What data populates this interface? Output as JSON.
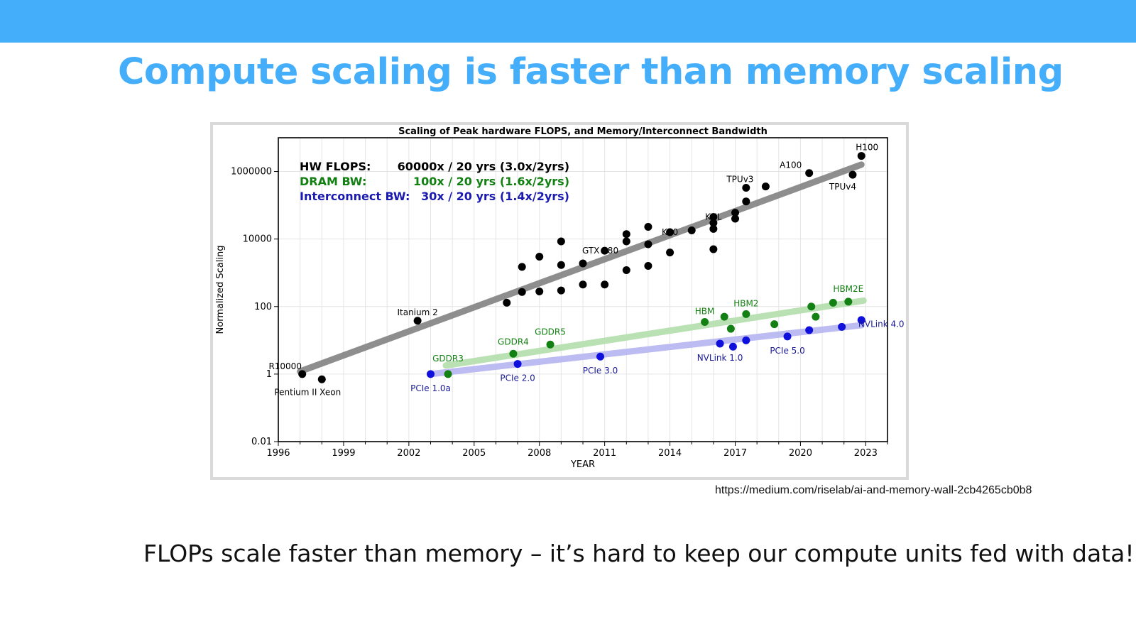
{
  "slide": {
    "title": "Compute scaling is faster than memory scaling",
    "source_url": "https://medium.com/riselab/ai-and-memory-wall-2cb4265cb0b8",
    "caption": "FLOPs scale faster than memory – it’s hard to keep our compute units fed with data!",
    "colors": {
      "banner": "#45aefb",
      "title": "#45aefb"
    }
  },
  "chart_data": {
    "type": "scatter",
    "title": "Scaling of Peak hardware FLOPS, and Memory/Interconnect Bandwidth",
    "xlabel": "YEAR",
    "ylabel": "Normalized Scaling",
    "y_scale": "log",
    "xlim": [
      1996,
      2024
    ],
    "ylim": [
      0.01,
      10000000
    ],
    "x_ticks": [
      1996,
      1999,
      2002,
      2005,
      2008,
      2011,
      2014,
      2017,
      2020,
      2023
    ],
    "y_ticks": [
      {
        "value": 0.01,
        "label": "0.01"
      },
      {
        "value": 1,
        "label": "1"
      },
      {
        "value": 100,
        "label": "100"
      },
      {
        "value": 10000,
        "label": "10000"
      },
      {
        "value": 1000000,
        "label": "1000000"
      }
    ],
    "grid": true,
    "annotations_box": [
      {
        "label": "HW FLOPS:",
        "rate": "60000x / 20 yrs (3.0x/2yrs)",
        "color": "#000000"
      },
      {
        "label": "DRAM BW:",
        "rate": "100x / 20 yrs (1.6x/2yrs)",
        "color": "#138013"
      },
      {
        "label": "Interconnect BW:",
        "rate": "30x / 20 yrs (1.4x/2yrs)",
        "color": "#1a1ab0"
      }
    ],
    "series": [
      {
        "color": "#000000",
        "trend_color": "#888888",
        "trend": [
          [
            1997,
            1.2
          ],
          [
            2022.8,
            1600000
          ]
        ],
        "points": [
          [
            1997.1,
            1
          ],
          [
            1998.0,
            0.7
          ],
          [
            2002.4,
            38
          ],
          [
            2006.5,
            130
          ],
          [
            2007.2,
            270
          ],
          [
            2007.2,
            1500
          ],
          [
            2008.0,
            280
          ],
          [
            2008.0,
            3000
          ],
          [
            2009.0,
            300
          ],
          [
            2009.0,
            1700
          ],
          [
            2009.0,
            8500
          ],
          [
            2010.0,
            450
          ],
          [
            2010.0,
            1900
          ],
          [
            2011.0,
            450
          ],
          [
            2011.0,
            4500
          ],
          [
            2012.0,
            1200
          ],
          [
            2012.0,
            8500
          ],
          [
            2012.0,
            14000
          ],
          [
            2013.0,
            1600
          ],
          [
            2013.0,
            7000
          ],
          [
            2013.0,
            23000
          ],
          [
            2014.0,
            4000
          ],
          [
            2014.0,
            16000
          ],
          [
            2015.0,
            18000
          ],
          [
            2016.0,
            5000
          ],
          [
            2016.0,
            20000
          ],
          [
            2016.0,
            30000
          ],
          [
            2016.0,
            45000
          ],
          [
            2017.0,
            40000
          ],
          [
            2017.0,
            60000
          ],
          [
            2017.5,
            130000
          ],
          [
            2017.5,
            330000
          ],
          [
            2018.4,
            360000
          ],
          [
            2020.4,
            900000
          ],
          [
            2022.4,
            800000
          ],
          [
            2022.8,
            2900000
          ]
        ],
        "labels": [
          {
            "text": "R10000",
            "x": 1997.1,
            "y": 1
          },
          {
            "text": "Pentium II Xeon",
            "x": 1998.0,
            "y": 0.7
          },
          {
            "text": "Itanium 2",
            "x": 2002.4,
            "y": 38
          },
          {
            "text": "GTX 580",
            "x": 2010.8,
            "y": 4500
          },
          {
            "text": "K40",
            "x": 2014.0,
            "y": 16000
          },
          {
            "text": "KNL",
            "x": 2016.0,
            "y": 45000
          },
          {
            "text": "TPUv3",
            "x": 2018.4,
            "y": 360000
          },
          {
            "text": "A100",
            "x": 2020.4,
            "y": 900000
          },
          {
            "text": "H100",
            "x": 2022.8,
            "y": 2900000
          },
          {
            "text": "TPUv4",
            "x": 2022.4,
            "y": 800000
          }
        ]
      },
      {
        "color": "#138013",
        "trend_color": "#b7e0b0",
        "trend": [
          [
            2003.7,
            1.8
          ],
          [
            2022.9,
            150
          ]
        ],
        "points": [
          [
            2003.8,
            1
          ],
          [
            2006.8,
            4
          ],
          [
            2008.5,
            7.5
          ],
          [
            2015.6,
            35
          ],
          [
            2016.5,
            50
          ],
          [
            2016.8,
            22
          ],
          [
            2017.5,
            60
          ],
          [
            2018.8,
            30
          ],
          [
            2020.5,
            100
          ],
          [
            2020.7,
            50
          ],
          [
            2021.5,
            130
          ],
          [
            2022.2,
            140
          ]
        ],
        "labels": [
          {
            "text": "GDDR3",
            "x": 2003.8,
            "y": 1
          },
          {
            "text": "GDDR4",
            "x": 2006.8,
            "y": 4
          },
          {
            "text": "GDDR5",
            "x": 2008.5,
            "y": 7.5
          },
          {
            "text": "HBM",
            "x": 2015.6,
            "y": 35
          },
          {
            "text": "HBM2",
            "x": 2017.5,
            "y": 60
          },
          {
            "text": "HBM2E",
            "x": 2022.2,
            "y": 140
          }
        ]
      },
      {
        "color": "#1010dd",
        "trend_color": "#b9b9f2",
        "trend": [
          [
            2003,
            1
          ],
          [
            2022.8,
            28
          ]
        ],
        "points": [
          [
            2003.0,
            1
          ],
          [
            2007.0,
            2
          ],
          [
            2010.8,
            3.3
          ],
          [
            2016.3,
            8
          ],
          [
            2016.9,
            6.5
          ],
          [
            2017.5,
            10
          ],
          [
            2019.4,
            13
          ],
          [
            2020.4,
            20
          ],
          [
            2021.9,
            25
          ],
          [
            2022.8,
            40
          ]
        ],
        "labels": [
          {
            "text": "PCIe 1.0a",
            "x": 2003.0,
            "y": 1
          },
          {
            "text": "PCIe 2.0",
            "x": 2007.0,
            "y": 2
          },
          {
            "text": "PCIe 3.0",
            "x": 2010.8,
            "y": 3.3
          },
          {
            "text": "NVLink 1.0",
            "x": 2016.3,
            "y": 8
          },
          {
            "text": "PCIe 5.0",
            "x": 2019.4,
            "y": 13
          },
          {
            "text": "NVLink 4.0",
            "x": 2022.8,
            "y": 40
          }
        ]
      }
    ]
  }
}
